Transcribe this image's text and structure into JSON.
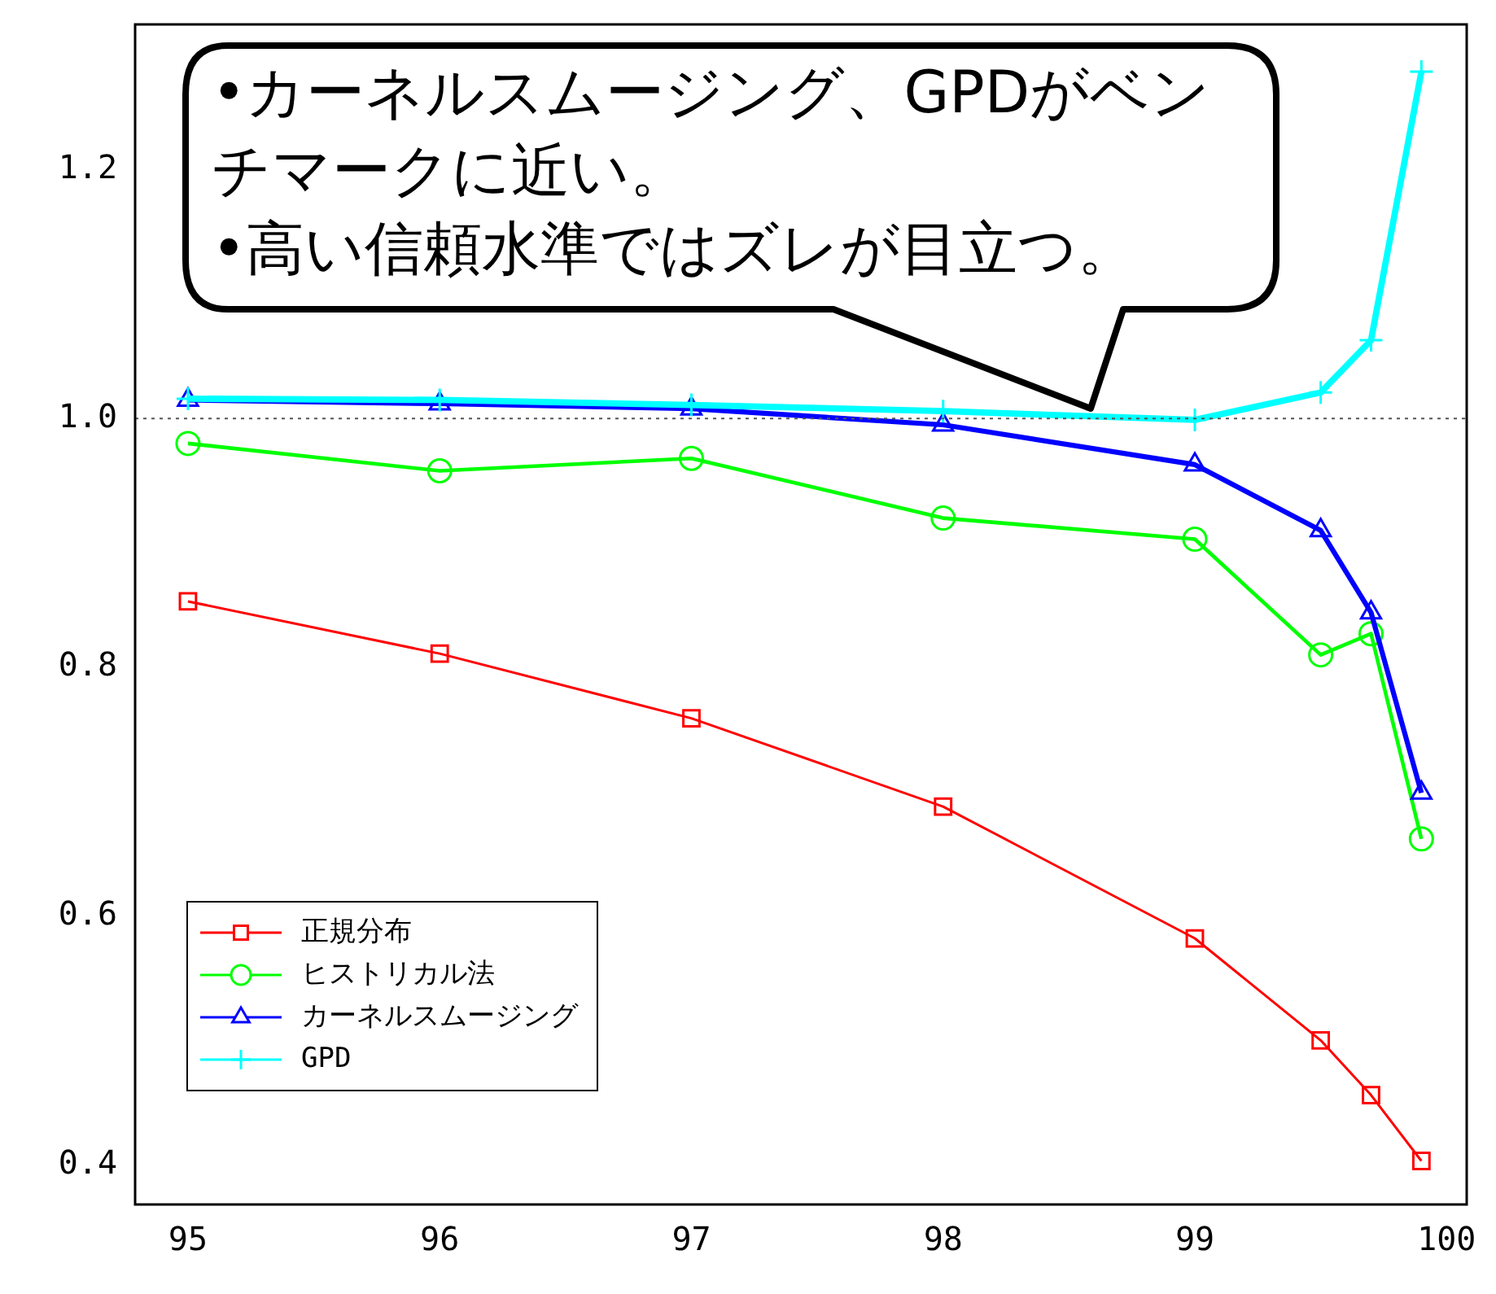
{
  "chart_data": {
    "type": "line",
    "x": [
      95,
      96,
      97,
      98,
      99,
      99.5,
      99.7,
      99.9
    ],
    "series": [
      {
        "name": "正規分布",
        "color": "#ff0000",
        "marker": "square",
        "values": [
          0.853,
          0.811,
          0.759,
          0.688,
          0.582,
          0.5,
          0.456,
          0.403
        ]
      },
      {
        "name": "ヒストリカル法",
        "color": "#00ff00",
        "marker": "circle",
        "values": [
          0.98,
          0.958,
          0.968,
          0.92,
          0.903,
          0.81,
          0.827,
          0.662
        ]
      },
      {
        "name": "カーネルスムージング",
        "color": "#0000ff",
        "marker": "triangle",
        "values": [
          1.015,
          1.012,
          1.008,
          0.995,
          0.963,
          0.91,
          0.844,
          0.699
        ]
      },
      {
        "name": "GPD",
        "color": "#00ffff",
        "marker": "cross",
        "values": [
          1.016,
          1.015,
          1.011,
          1.006,
          0.999,
          1.021,
          1.063,
          1.279
        ]
      }
    ],
    "xlim": [
      94.79,
      100.08
    ],
    "ylim": [
      0.368,
      1.317
    ],
    "xticks": [
      95,
      96,
      97,
      98,
      99,
      100
    ],
    "yticks": [
      {
        "value": 0.4,
        "label": "0.4"
      },
      {
        "value": 0.6,
        "label": "0.6"
      },
      {
        "value": 0.8,
        "label": "0.8"
      },
      {
        "value": 1,
        "label": "1.0"
      },
      {
        "value": 1.2,
        "label": "1.2"
      }
    ],
    "ref_lines": [
      {
        "axis": "y",
        "value": 1,
        "color": "#555555",
        "line_style": "dotted"
      }
    ],
    "annotations": [
      "•カーネルスムージング、GPDがベンチマークに近い。",
      "•高い信頼水準ではズレが目立つ。"
    ],
    "legend": "bottom left",
    "grid": false
  }
}
